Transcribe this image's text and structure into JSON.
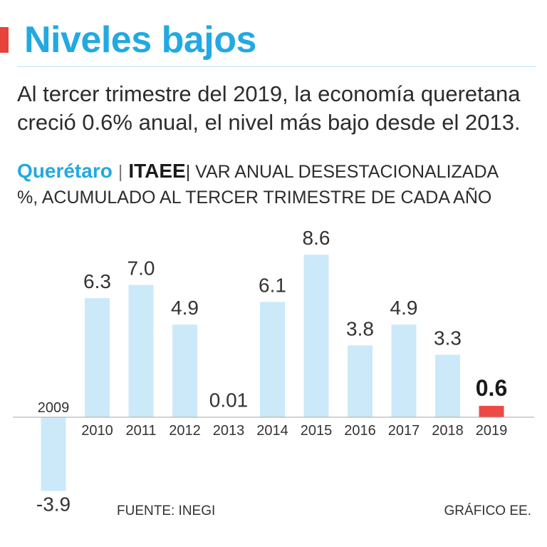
{
  "title": "Niveles bajos",
  "subtitle": "Al tercer trimestre del 2019, la economía queretana creció 0.6% anual, el nivel más bajo desde el 2013.",
  "chart_header": {
    "region": "Querétaro",
    "divider": "|",
    "indicator": "ITAEE",
    "measure": "| VAR ANUAL DESESTACIONALIZADA",
    "units_line": "%, ACUMULADO AL TERCER TRIMESTRE DE CADA AÑO"
  },
  "chart_data": {
    "type": "bar",
    "title": "ITAEE Querétaro, var. anual desestacionalizada (%)",
    "categories": [
      "2009",
      "2010",
      "2011",
      "2012",
      "2013",
      "2014",
      "2015",
      "2016",
      "2017",
      "2018",
      "2019"
    ],
    "values": [
      -3.9,
      6.3,
      7.0,
      4.9,
      0.01,
      6.1,
      8.6,
      3.8,
      4.9,
      3.3,
      0.6
    ],
    "value_labels": [
      "-3.9",
      "6.3",
      "7.0",
      "4.9",
      "0.01",
      "6.1",
      "8.6",
      "3.8",
      "4.9",
      "3.3",
      "0.6"
    ],
    "highlight_index": 10,
    "ylim": [
      -4,
      9
    ],
    "xlabel": "",
    "ylabel": "%",
    "colors": {
      "bar": "#cbe9f9",
      "highlight": "#ec4a44",
      "axis": "#aaaaaa",
      "text": "#333333"
    }
  },
  "footer": {
    "source": "FUENTE: INEGI",
    "credit": "GRÁFICO EE."
  }
}
